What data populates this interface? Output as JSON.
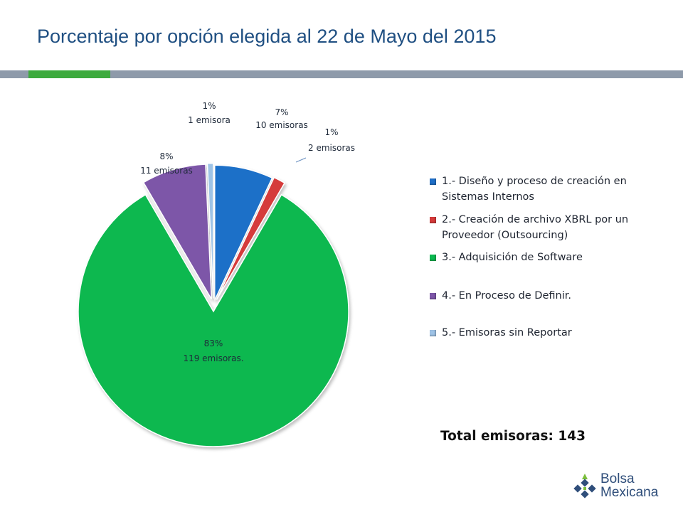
{
  "slide": {
    "title": "Porcentaje por opción elegida al 22 de Mayo del 2015",
    "total_label": "Total emisoras: 143",
    "logo": {
      "line1": "Bolsa",
      "line2": "Mexicana"
    },
    "colors": {
      "title": "#1f4f82",
      "rule": "#8e9aaa",
      "rule_accent": "#3daa3e"
    }
  },
  "chart_data": {
    "type": "pie",
    "title": "",
    "slices": [
      {
        "name": "1.- Diseño y proceso de creación en Sistemas Internos",
        "value": 10,
        "percent_label": "7%",
        "count_label": "10 emisoras",
        "color": "#1f6fc8"
      },
      {
        "name": "2.- Creación de archivo XBRL por un Proveedor (Outsourcing)",
        "value": 2,
        "percent_label": "1%",
        "count_label": "2 emisoras",
        "color": "#d53a3a"
      },
      {
        "name": "3.- Adquisición de Software",
        "value": 119,
        "percent_label": "83%",
        "count_label": "119 emisoras.",
        "color": "#0ab850"
      },
      {
        "name": "4.- En Proceso de Definir.",
        "value": 11,
        "percent_label": "8%",
        "count_label": "11 emisoras",
        "color": "#7d56a8"
      },
      {
        "name": "5.- Emisoras sin Reportar",
        "value": 1,
        "percent_label": "1%",
        "count_label": "1 emisora",
        "color": "#9ec3e6"
      }
    ],
    "legend_position": "right",
    "exploded": true
  }
}
